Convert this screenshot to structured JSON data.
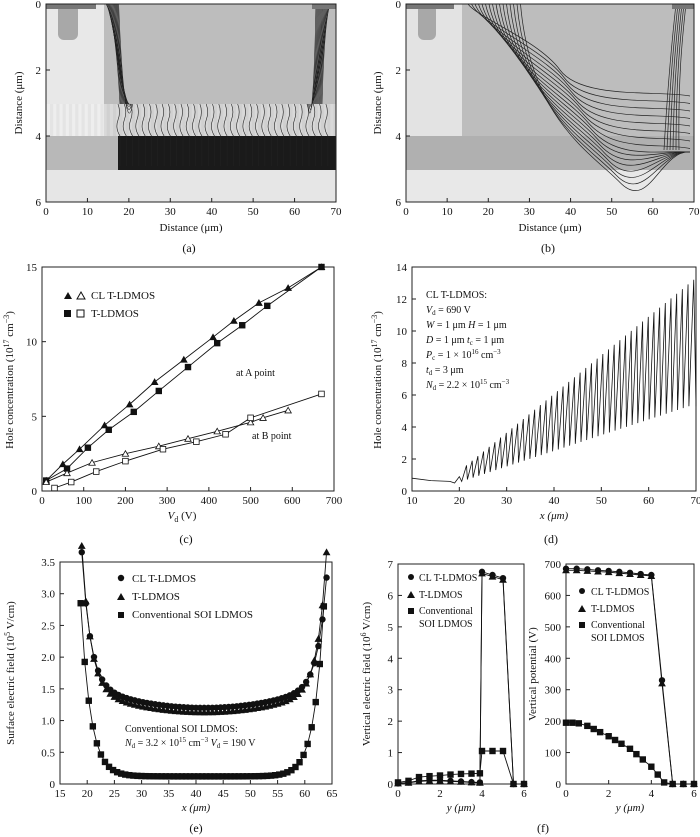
{
  "panels": {
    "a": {
      "caption": "(a)",
      "xlabel": "Distance (μm)",
      "ylabel": "Distance (μm)",
      "xticks": [
        "0",
        "10",
        "20",
        "30",
        "40",
        "50",
        "60",
        "70"
      ],
      "yticks": [
        "0",
        "2",
        "4",
        "6"
      ]
    },
    "b": {
      "caption": "(b)",
      "xlabel": "Distance (μm)",
      "ylabel": "Distance (μm)",
      "xticks": [
        "0",
        "10",
        "20",
        "30",
        "40",
        "50",
        "60",
        "70"
      ],
      "yticks": [
        "0",
        "2",
        "4",
        "6"
      ]
    },
    "c": {
      "caption": "(c)",
      "xlabel": "V",
      "xlabel_sub": "d",
      "xlabel_unit": " (V)",
      "ylabel": "Hole concentration (10",
      "ylabel_sup": "17",
      "ylabel_end": " cm",
      "ylabel_sup2": "−3",
      "ylabel_close": ")",
      "annotations": [
        "at A point",
        "at B point"
      ],
      "legend": [
        "CL T-LDMOS",
        "T-LDMOS"
      ]
    },
    "d": {
      "caption": "(d)",
      "xlabel": "x (μm)",
      "ylabel": "Hole concentration (10",
      "ylabel_sup": "17",
      "ylabel_end": " cm",
      "ylabel_sup2": "−3",
      "ylabel_close": ")",
      "params": [
        "CL T-LDMOS:",
        "V_d = 690 V",
        "W = 1 μm  H = 1 μm",
        "D = 1 μm  t_c = 1 μm",
        "P_c = 1 × 10^16 cm^−3",
        "t_d = 3 μm",
        "N_d = 2.2 × 10^15 cm^−3"
      ]
    },
    "e": {
      "caption": "(e)",
      "xlabel": "x (μm)",
      "ylabel": "Surface electric field (10",
      "ylabel_sup": "5",
      "ylabel_end": " V/cm)",
      "legend": [
        "CL T-LDMOS",
        "T-LDMOS",
        "Conventional SOI LDMOS"
      ],
      "note1": "Conventional SOI LDMOS:",
      "note2": "N_d = 3.2 × 10^15 cm^−3  V_d = 190 V"
    },
    "f": {
      "caption": "(f)",
      "left_ylabel": "Vertical electric field (10",
      "left_ylabel_sup": "6",
      "left_ylabel_end": " V/cm)",
      "right_ylabel": "Vertical potential (V)",
      "xlabel": "y (μm)",
      "legend": [
        "CL T-LDMOS",
        "T-LDMOS",
        "Conventional",
        "SOI LDMOS"
      ]
    }
  },
  "chart_data": [
    {
      "type": "line",
      "panel": "c",
      "xlim": [
        0,
        700
      ],
      "ylim": [
        0,
        15
      ],
      "xticks": [
        0,
        100,
        200,
        300,
        400,
        500,
        600,
        700
      ],
      "yticks": [
        0,
        5,
        10,
        15
      ],
      "series": [
        {
          "name": "CL T-LDMOS",
          "marker": "triangle",
          "point": "A",
          "x": [
            10,
            50,
            90,
            150,
            210,
            270,
            340,
            410,
            460,
            520,
            590,
            670
          ],
          "y": [
            0.7,
            1.8,
            2.8,
            4.4,
            5.8,
            7.3,
            8.8,
            10.3,
            11.4,
            12.6,
            13.6,
            15
          ]
        },
        {
          "name": "T-LDMOS",
          "marker": "square",
          "point": "A",
          "x": [
            10,
            60,
            110,
            160,
            220,
            280,
            350,
            420,
            480,
            540,
            670
          ],
          "y": [
            0.7,
            1.5,
            2.9,
            4.1,
            5.3,
            6.7,
            8.3,
            9.9,
            11.1,
            12.4,
            15
          ]
        },
        {
          "name": "CL T-LDMOS",
          "marker": "triangle-open",
          "point": "B",
          "x": [
            10,
            60,
            120,
            200,
            280,
            350,
            420,
            500,
            530,
            590
          ],
          "y": [
            0.6,
            1.2,
            1.9,
            2.5,
            3.0,
            3.5,
            4.0,
            4.6,
            4.9,
            5.4
          ]
        },
        {
          "name": "T-LDMOS",
          "marker": "square-open",
          "point": "B",
          "x": [
            30,
            70,
            130,
            200,
            290,
            370,
            440,
            500,
            670
          ],
          "y": [
            0.2,
            0.6,
            1.3,
            2.0,
            2.8,
            3.3,
            3.8,
            4.9,
            6.5
          ]
        }
      ]
    },
    {
      "type": "line",
      "panel": "d",
      "xlim": [
        10,
        70
      ],
      "ylim": [
        0,
        14
      ],
      "xticks": [
        10,
        20,
        30,
        40,
        50,
        60,
        70
      ],
      "yticks": [
        0,
        2,
        4,
        6,
        8,
        10,
        12,
        14
      ],
      "sawtooth": {
        "x_start": 20.5,
        "x_end": 69.5,
        "period": 1.2,
        "base_start": 0.6,
        "base_end": 5.3,
        "peak_start": 1.6,
        "peak_end": 13.2
      },
      "baseline": {
        "x": [
          10,
          14,
          18,
          19,
          20
        ],
        "y": [
          0.8,
          0.65,
          0.6,
          0.5,
          0.9
        ]
      }
    },
    {
      "type": "line",
      "panel": "e",
      "xlim": [
        15,
        65
      ],
      "ylim": [
        0,
        3.5
      ],
      "xticks": [
        15,
        20,
        25,
        30,
        35,
        40,
        45,
        50,
        55,
        60,
        65
      ],
      "yticks": [
        0,
        0.5,
        1.0,
        1.5,
        2.0,
        2.5,
        3.0,
        3.5
      ],
      "series": [
        {
          "name": "CL T-LDMOS",
          "marker": "circle",
          "x_start": 19,
          "x_end": 64,
          "left_peak": 3.3,
          "mid": 1.2,
          "right_peak": 2.9
        },
        {
          "name": "T-LDMOS",
          "marker": "triangle",
          "x_start": 19,
          "x_end": 64,
          "left_peak": 3.4,
          "mid": 1.13,
          "right_peak": 3.3
        },
        {
          "name": "Conventional SOI LDMOS",
          "marker": "square",
          "x_start": 18.8,
          "x_end": 63.5,
          "left_peak": 2.85,
          "mid": 0.12,
          "right_peak": 2.8
        }
      ]
    },
    {
      "type": "line",
      "panel": "f-left",
      "xlim": [
        0,
        6
      ],
      "ylim": [
        0,
        7
      ],
      "xticks": [
        0,
        2,
        4,
        6
      ],
      "yticks": [
        0,
        1,
        2,
        3,
        4,
        5,
        6,
        7
      ],
      "series": [
        {
          "name": "CL T-LDMOS",
          "marker": "circle",
          "x": [
            0,
            0.5,
            1,
            1.5,
            2,
            2.5,
            3,
            3.5,
            3.9,
            4,
            4.5,
            5,
            5.5,
            6
          ],
          "y": [
            0.02,
            0.05,
            0.1,
            0.12,
            0.12,
            0.1,
            0.08,
            0.06,
            0.05,
            6.75,
            6.65,
            6.55,
            0,
            0
          ]
        },
        {
          "name": "T-LDMOS",
          "marker": "triangle",
          "x": [
            0,
            0.5,
            1,
            1.5,
            2,
            2.5,
            3,
            3.5,
            3.9,
            4,
            4.5,
            5,
            5.5,
            6
          ],
          "y": [
            0.02,
            0.04,
            0.08,
            0.1,
            0.1,
            0.08,
            0.07,
            0.05,
            0.04,
            6.7,
            6.6,
            6.5,
            0,
            0
          ]
        },
        {
          "name": "Conventional SOI LDMOS",
          "marker": "square",
          "x": [
            0,
            0.5,
            1,
            1.5,
            2,
            2.5,
            3,
            3.5,
            3.9,
            4,
            4.5,
            5,
            5.5,
            6
          ],
          "y": [
            0.05,
            0.1,
            0.22,
            0.25,
            0.27,
            0.3,
            0.32,
            0.33,
            0.34,
            1.05,
            1.05,
            1.05,
            0,
            0
          ]
        }
      ]
    },
    {
      "type": "line",
      "panel": "f-right",
      "xlim": [
        0,
        6
      ],
      "ylim": [
        0,
        700
      ],
      "xticks": [
        0,
        2,
        4,
        6
      ],
      "yticks": [
        0,
        100,
        200,
        300,
        400,
        500,
        600,
        700
      ],
      "series": [
        {
          "name": "CL T-LDMOS",
          "marker": "circle",
          "x": [
            0,
            0.5,
            1,
            1.5,
            2,
            2.5,
            3,
            3.5,
            4,
            4.5,
            5,
            5.5,
            6
          ],
          "y": [
            685,
            685,
            683,
            680,
            678,
            675,
            672,
            668,
            665,
            330,
            0,
            0,
            0
          ]
        },
        {
          "name": "T-LDMOS",
          "marker": "triangle",
          "x": [
            0,
            0.5,
            1,
            1.5,
            2,
            2.5,
            3,
            3.5,
            4,
            4.5,
            5,
            5.5,
            6
          ],
          "y": [
            680,
            680,
            678,
            676,
            674,
            671,
            668,
            665,
            662,
            320,
            0,
            0,
            0
          ]
        },
        {
          "name": "Conventional SOI LDMOS",
          "marker": "square",
          "x": [
            0,
            0.3,
            0.6,
            1,
            1.3,
            1.6,
            2,
            2.3,
            2.6,
            3,
            3.3,
            3.6,
            4,
            4.3,
            4.6,
            5,
            5.5,
            6
          ],
          "y": [
            195,
            195,
            193,
            185,
            175,
            165,
            152,
            140,
            128,
            112,
            95,
            78,
            55,
            30,
            5,
            0,
            0,
            0
          ]
        }
      ]
    }
  ]
}
